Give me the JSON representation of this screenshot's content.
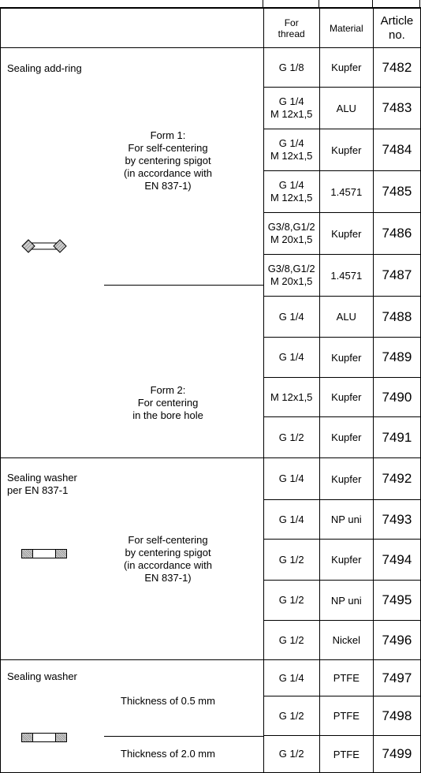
{
  "header": {
    "for_thread": "For\nthread",
    "material": "Material",
    "article_no": "Article\nno."
  },
  "groups": [
    {
      "label": "Sealing add-ring",
      "icon": "sealing-ring-diamond-icon",
      "forms": [
        {
          "description": "Form 1:\nFor self-centering\nby centering spigot\n(in accordance with\nEN 837-1)"
        },
        {
          "description": "Form 2:\nFor centering\nin the bore hole"
        }
      ]
    },
    {
      "label": "Sealing washer\nper EN 837-1",
      "icon": "sealing-washer-icon",
      "forms": [
        {
          "description": "For self-centering\nby centering spigot\n(in accordance with\nEN 837-1)"
        }
      ]
    },
    {
      "label": "Sealing washer",
      "icon": "sealing-washer-icon",
      "forms": [
        {
          "description": "Thickness of 0.5 mm"
        },
        {
          "description": "Thickness of 2.0 mm"
        }
      ]
    }
  ],
  "rows": [
    {
      "thread": "G 1/8",
      "material": "Kupfer",
      "article": "7482"
    },
    {
      "thread": "G 1/4\nM 12x1,5",
      "material": "ALU",
      "article": "7483"
    },
    {
      "thread": "G 1/4\nM 12x1,5",
      "material": "Kupfer",
      "article": "7484"
    },
    {
      "thread": "G 1/4\nM 12x1,5",
      "material": "1.4571",
      "article": "7485"
    },
    {
      "thread": "G3/8,G1/2\nM 20x1,5",
      "material": "Kupfer",
      "article": "7486"
    },
    {
      "thread": "G3/8,G1/2\nM 20x1,5",
      "material": "1.4571",
      "article": "7487"
    },
    {
      "thread": "G 1/4",
      "material": "ALU",
      "article": "7488"
    },
    {
      "thread": "G 1/4",
      "material": "Kupfer",
      "article": "7489"
    },
    {
      "thread": "M 12x1,5",
      "material": "Kupfer",
      "article": "7490"
    },
    {
      "thread": "G 1/2",
      "material": "Kupfer",
      "article": "7491"
    },
    {
      "thread": "G 1/4",
      "material": "Kupfer",
      "article": "7492"
    },
    {
      "thread": "G 1/4",
      "material": "NP uni",
      "article": "7493"
    },
    {
      "thread": "G 1/2",
      "material": "Kupfer",
      "article": "7494"
    },
    {
      "thread": "G 1/2",
      "material": "NP uni",
      "article": "7495"
    },
    {
      "thread": "G 1/2",
      "material": "Nickel",
      "article": "7496"
    },
    {
      "thread": "G 1/4",
      "material": "PTFE",
      "article": "7497"
    },
    {
      "thread": "G 1/2",
      "material": "PTFE",
      "article": "7498"
    },
    {
      "thread": "G 1/2",
      "material": "PTFE",
      "article": "7499"
    }
  ]
}
